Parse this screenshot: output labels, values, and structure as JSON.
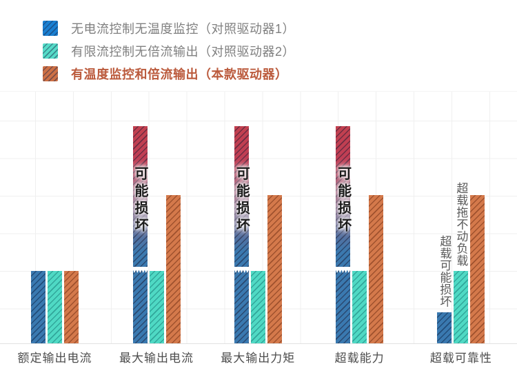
{
  "legend": {
    "items": [
      {
        "label": "无电流控制无温度监控（对照驱动器1）",
        "swatch_color": "#1a80d2",
        "text_color": "#7f7f7f",
        "emphasis": false
      },
      {
        "label": "有限流控制无倍流输出（对照驱动器2）",
        "swatch_color": "#55dcc8",
        "text_color": "#7f7f7f",
        "emphasis": false
      },
      {
        "label": "有温度监控和倍流输出（本款驱动器）",
        "swatch_color": "#cd7045",
        "text_color": "#bb5a3c",
        "emphasis": true
      }
    ]
  },
  "chart_data": {
    "type": "bar",
    "categories": [
      "额定输出电流",
      "最大输出电流",
      "最大输出力矩",
      "超载能力",
      "超载可靠性"
    ],
    "series": [
      {
        "name": "无电流控制无温度监控（对照驱动器1）",
        "style": "blue",
        "color": "#3a79b0",
        "values": [
          1,
          3,
          3,
          3,
          0.43
        ],
        "damage_categories": [
          1,
          2,
          3
        ]
      },
      {
        "name": "有限流控制无倍流输出（对照驱动器2）",
        "style": "teal",
        "color": "#4fd9c4",
        "values": [
          1,
          1,
          1,
          1,
          1
        ]
      },
      {
        "name": "有温度监控和倍流输出（本款驱动器）",
        "style": "orange",
        "color": "#d4794b",
        "values": [
          1,
          2.05,
          2.05,
          2.05,
          2.05
        ]
      }
    ],
    "damage_label": "可能损坏",
    "damage_gradient_top": "#c2404f",
    "annotations": [
      {
        "category": 4,
        "series": 0,
        "text": "超载可能损坏"
      },
      {
        "category": 4,
        "series": 1,
        "text": "超载拖不动负载"
      }
    ],
    "xlabel": "",
    "ylabel": "",
    "ylim": [
      0,
      3.5
    ],
    "grid": true,
    "legend_position": "top-left"
  }
}
